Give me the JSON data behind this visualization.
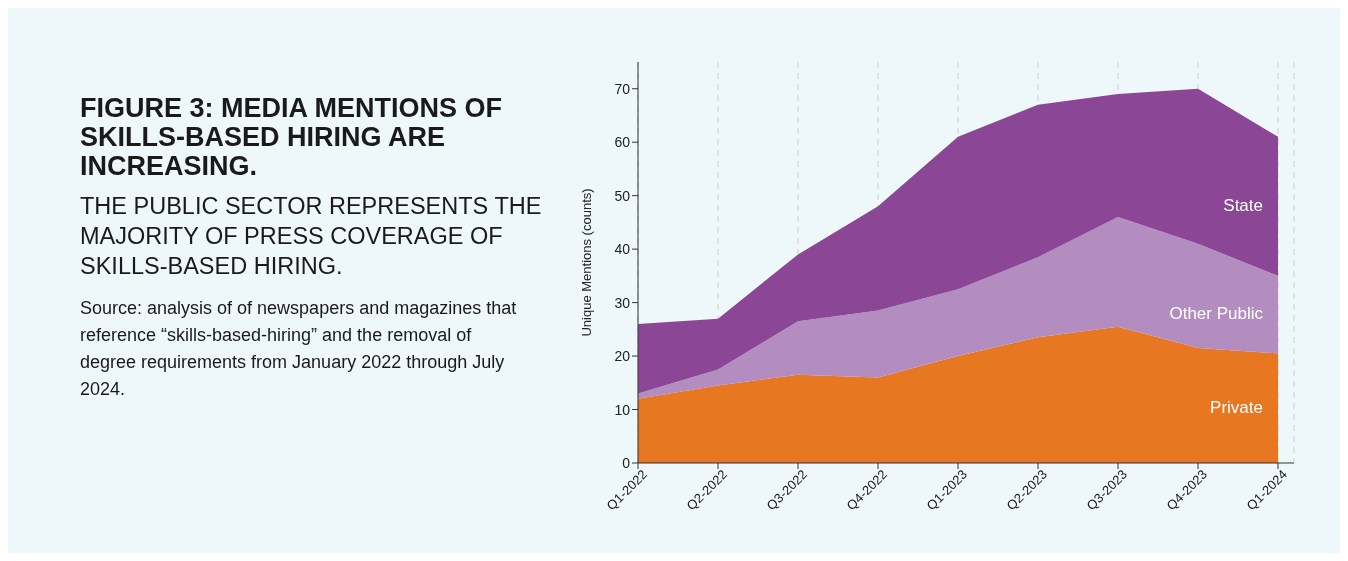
{
  "chart_data": {
    "type": "area",
    "stacked": true,
    "title": "FIGURE 3: MEDIA MENTIONS OF SKILLS-BASED HIRING ARE INCREASING.",
    "subtitle": "THE PUBLIC SECTOR REPRESENTS THE MAJORITY OF PRESS COVERAGE OF SKILLS-BASED HIRING.",
    "annotations": [
      "Source: analysis of of newspapers and magazines that reference “skills-based-hiring” and the removal of degree requirements from January 2022 through July 2024."
    ],
    "ylabel": "Unique Mentions (counts)",
    "categories": [
      "Q1-2022",
      "Q2-2022",
      "Q3-2022",
      "Q4-2022",
      "Q1-2023",
      "Q2-2023",
      "Q3-2023",
      "Q4-2023",
      "Q1-2024"
    ],
    "series": [
      {
        "name": "Private",
        "color": "#e87722",
        "values": [
          12,
          14.5,
          16.5,
          16,
          20,
          23.5,
          25.5,
          21.5,
          20.5
        ]
      },
      {
        "name": "Other Public",
        "color": "#b38dc0",
        "values": [
          1,
          3,
          10,
          12.5,
          12.5,
          15,
          20.5,
          19.5,
          14.5
        ]
      },
      {
        "name": "State",
        "color": "#8b4796",
        "values": [
          13,
          9.5,
          12.5,
          19.5,
          28.5,
          28.5,
          23,
          29,
          26
        ]
      }
    ],
    "ylim": [
      0,
      75
    ],
    "yticks": [
      0,
      10,
      20,
      30,
      40,
      50,
      60,
      70
    ],
    "grid": "x",
    "legend": false
  }
}
